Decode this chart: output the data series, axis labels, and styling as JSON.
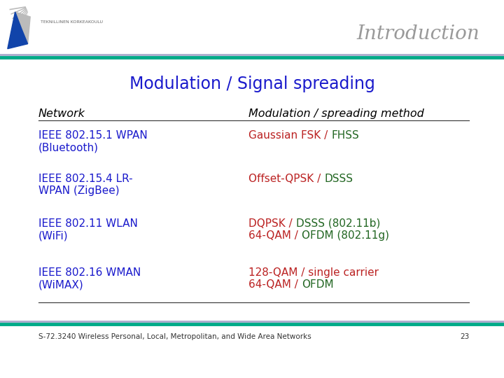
{
  "title": "Introduction",
  "slide_title": "Modulation / Signal spreading",
  "col1_header": "Network",
  "col2_header": "Modulation / spreading method",
  "rows": [
    {
      "network_lines": [
        "IEEE 802.15.1 WPAN",
        "(Bluetooth)"
      ],
      "method_lines": [
        [
          {
            "text": "Gaussian FSK / ",
            "color": "#BB2222"
          },
          {
            "text": "FHSS",
            "color": "#226622"
          }
        ]
      ]
    },
    {
      "network_lines": [
        "IEEE 802.15.4 LR-",
        "WPAN (ZigBee)"
      ],
      "method_lines": [
        [
          {
            "text": "Offset-QPSK / ",
            "color": "#BB2222"
          },
          {
            "text": "DSSS",
            "color": "#226622"
          }
        ]
      ]
    },
    {
      "network_lines": [
        "IEEE 802.11 WLAN",
        "(WiFi)"
      ],
      "method_lines": [
        [
          {
            "text": "DQPSK / ",
            "color": "#BB2222"
          },
          {
            "text": "DSSS (802.11b)",
            "color": "#226622"
          }
        ],
        [
          {
            "text": "64-QAM / ",
            "color": "#BB2222"
          },
          {
            "text": "OFDM (802.11g)",
            "color": "#226622"
          }
        ]
      ]
    },
    {
      "network_lines": [
        "IEEE 802.16 WMAN",
        "(WiMAX)"
      ],
      "method_lines": [
        [
          {
            "text": "128-QAM / single carrier",
            "color": "#BB2222"
          }
        ],
        [
          {
            "text": "64-QAM / ",
            "color": "#BB2222"
          },
          {
            "text": "OFDM",
            "color": "#226622"
          }
        ]
      ]
    }
  ],
  "footer": "S-72.3240 Wireless Personal, Local, Metropolitan, and Wide Area Networks",
  "page_number": "23",
  "network_color": "#1A1ACC",
  "bg_color": "#FFFFFF",
  "title_color": "#999999",
  "slide_title_color": "#1A1ACC",
  "top_line1_color": "#AAAACC",
  "top_line2_color": "#00AA88",
  "bot_line1_color": "#AAAACC",
  "bot_line2_color": "#00AA88"
}
